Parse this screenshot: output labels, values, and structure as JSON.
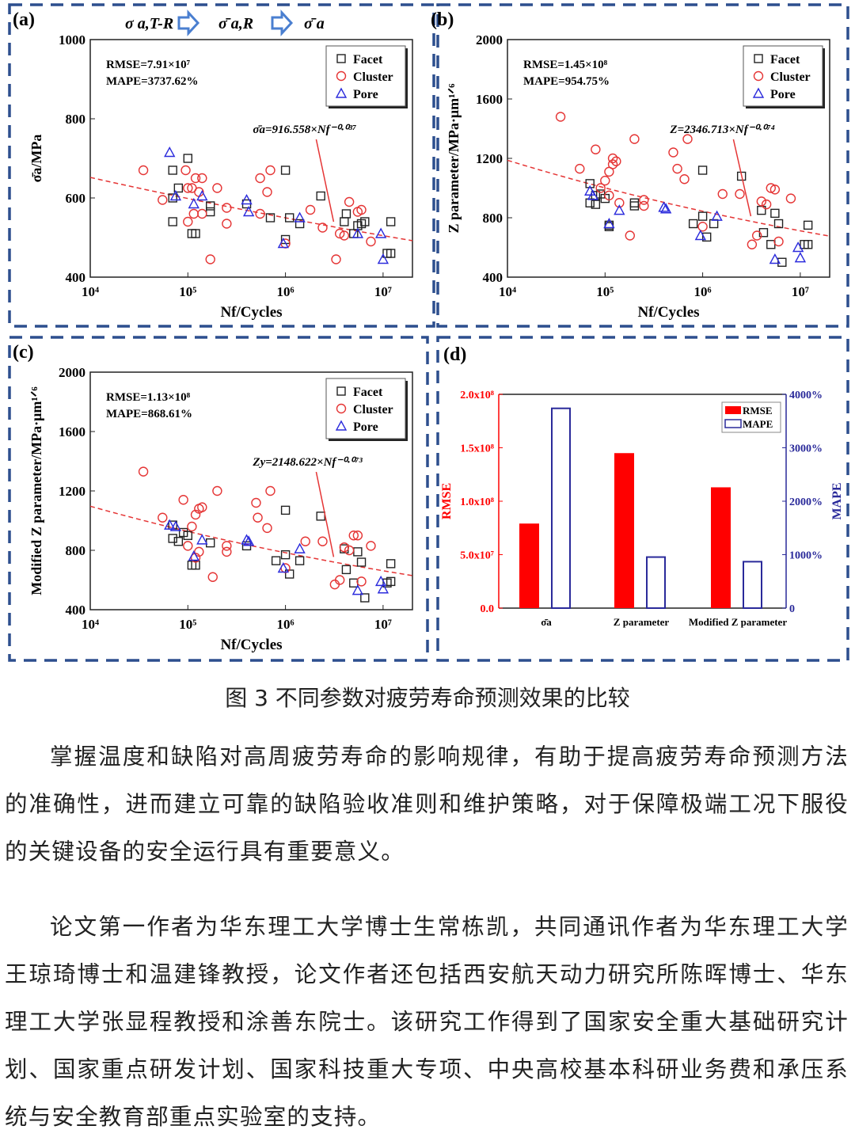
{
  "figure": {
    "panels": [
      {
        "label": "(a)",
        "title_chain": [
          "σ a,T-R",
          "σ̄ a,R",
          "σ̄ a"
        ],
        "stats": [
          "RMSE=7.91×10⁷",
          "MAPE=3737.62%"
        ],
        "fit_label": "σ̄a=916.558×Nf⁻⁰·⁰³⁷",
        "xlabel": "Nf/Cycles",
        "ylabel": "σ̄a/MPa"
      },
      {
        "label": "(b)",
        "stats": [
          "RMSE=1.45×10⁸",
          "MAPE=954.75%"
        ],
        "fit_label": "Z=2346.713×Nf⁻⁰·⁰⁷⁴",
        "xlabel": "Nf/Cycles",
        "ylabel": "Z parameter/MPa·μm¹ᐟ⁶"
      },
      {
        "label": "(c)",
        "stats": [
          "RMSE=1.13×10⁸",
          "MAPE=868.61%"
        ],
        "fit_label": "Zy=2148.622×Nf⁻⁰·⁰⁷³",
        "xlabel": "Nf/Cycles",
        "ylabel": "Modified Z parameter/MPa·μm¹ᐟ⁶"
      },
      {
        "label": "(d)"
      }
    ],
    "legend": [
      "Facet",
      "Cluster",
      "Pore"
    ]
  },
  "colors": {
    "frame": "#2d4f8e",
    "facet": "#222222",
    "cluster": "#e53535",
    "pore": "#2b2bdc",
    "rmse": "#ff0000",
    "mape": "#2a2a9a",
    "arrow": "#4a7fd0"
  },
  "chart_data": [
    {
      "type": "scatter",
      "panel": "a",
      "xscale": "log",
      "xlim": [
        10000,
        20000000
      ],
      "ylim": [
        400,
        1000
      ],
      "xticks": [
        "10⁴",
        "10⁵",
        "10⁶",
        "10⁷"
      ],
      "yticks": [
        400,
        600,
        800,
        1000
      ],
      "fit": {
        "a": 916.558,
        "b": -0.037
      },
      "series": [
        {
          "name": "Facet",
          "points": [
            [
              70000,
              670
            ],
            [
              100000,
              700
            ],
            [
              70000,
              540
            ],
            [
              80000,
              625
            ],
            [
              70000,
              600
            ],
            [
              110000,
              510
            ],
            [
              120000,
              510
            ],
            [
              170000,
              580
            ],
            [
              170000,
              565
            ],
            [
              400000,
              585
            ],
            [
              700000,
              550
            ],
            [
              1000000,
              670
            ],
            [
              1000000,
              495
            ],
            [
              1100000,
              550
            ],
            [
              1400000,
              535
            ],
            [
              2300000,
              605
            ],
            [
              4000000,
              540
            ],
            [
              4200000,
              560
            ],
            [
              5000000,
              510
            ],
            [
              5500000,
              530
            ],
            [
              6000000,
              535
            ],
            [
              6500000,
              540
            ],
            [
              12000000,
              540
            ],
            [
              11000000,
              460
            ],
            [
              12000000,
              460
            ]
          ]
        },
        {
          "name": "Cluster",
          "points": [
            [
              35000,
              670
            ],
            [
              55000,
              595
            ],
            [
              95000,
              670
            ],
            [
              100000,
              625
            ],
            [
              100000,
              540
            ],
            [
              110000,
              625
            ],
            [
              115000,
              560
            ],
            [
              120000,
              650
            ],
            [
              130000,
              615
            ],
            [
              140000,
              560
            ],
            [
              140000,
              650
            ],
            [
              170000,
              445
            ],
            [
              200000,
              625
            ],
            [
              250000,
              575
            ],
            [
              250000,
              535
            ],
            [
              550000,
              650
            ],
            [
              550000,
              560
            ],
            [
              650000,
              615
            ],
            [
              700000,
              670
            ],
            [
              1000000,
              485
            ],
            [
              1800000,
              570
            ],
            [
              2400000,
              525
            ],
            [
              3300000,
              445
            ],
            [
              3600000,
              510
            ],
            [
              4000000,
              505
            ],
            [
              4500000,
              590
            ],
            [
              5500000,
              565
            ],
            [
              6000000,
              570
            ],
            [
              7500000,
              490
            ]
          ]
        },
        {
          "name": "Pore",
          "points": [
            [
              65000,
              715
            ],
            [
              75000,
              605
            ],
            [
              115000,
              585
            ],
            [
              140000,
              605
            ],
            [
              400000,
              595
            ],
            [
              420000,
              565
            ],
            [
              950000,
              485
            ],
            [
              1400000,
              550
            ],
            [
              5500000,
              510
            ],
            [
              9500000,
              510
            ],
            [
              10000000,
              445
            ]
          ]
        }
      ]
    },
    {
      "type": "scatter",
      "panel": "b",
      "xscale": "log",
      "xlim": [
        10000,
        20000000
      ],
      "ylim": [
        400,
        2000
      ],
      "xticks": [
        "10⁴",
        "10⁵",
        "10⁶",
        "10⁷"
      ],
      "yticks": [
        400,
        800,
        1200,
        1600,
        2000
      ],
      "fit": {
        "a": 2346.713,
        "b": -0.074
      },
      "series": [
        {
          "name": "Facet",
          "points": [
            [
              70000,
              1030
            ],
            [
              80000,
              950
            ],
            [
              70000,
              900
            ],
            [
              80000,
              890
            ],
            [
              90000,
              960
            ],
            [
              100000,
              930
            ],
            [
              110000,
              740
            ],
            [
              110000,
              750
            ],
            [
              200000,
              900
            ],
            [
              200000,
              880
            ],
            [
              800000,
              760
            ],
            [
              1000000,
              1120
            ],
            [
              1000000,
              810
            ],
            [
              1100000,
              670
            ],
            [
              1300000,
              760
            ],
            [
              2500000,
              1080
            ],
            [
              4000000,
              850
            ],
            [
              4200000,
              700
            ],
            [
              5000000,
              620
            ],
            [
              5500000,
              830
            ],
            [
              6000000,
              760
            ],
            [
              6500000,
              500
            ],
            [
              11000000,
              620
            ],
            [
              12000000,
              620
            ],
            [
              12000000,
              750
            ]
          ]
        },
        {
          "name": "Cluster",
          "points": [
            [
              35000,
              1480
            ],
            [
              55000,
              1130
            ],
            [
              80000,
              1260
            ],
            [
              90000,
              1000
            ],
            [
              100000,
              1050
            ],
            [
              110000,
              1110
            ],
            [
              120000,
              1160
            ],
            [
              120000,
              1200
            ],
            [
              130000,
              1180
            ],
            [
              110000,
              950
            ],
            [
              140000,
              900
            ],
            [
              180000,
              680
            ],
            [
              200000,
              1330
            ],
            [
              250000,
              920
            ],
            [
              250000,
              880
            ],
            [
              500000,
              1240
            ],
            [
              550000,
              1130
            ],
            [
              650000,
              1060
            ],
            [
              700000,
              1330
            ],
            [
              1000000,
              740
            ],
            [
              1600000,
              960
            ],
            [
              2400000,
              960
            ],
            [
              3200000,
              620
            ],
            [
              3600000,
              680
            ],
            [
              4000000,
              910
            ],
            [
              4500000,
              890
            ],
            [
              5000000,
              1000
            ],
            [
              5500000,
              990
            ],
            [
              6000000,
              640
            ],
            [
              8000000,
              930
            ]
          ]
        },
        {
          "name": "Pore",
          "points": [
            [
              70000,
              980
            ],
            [
              75000,
              950
            ],
            [
              110000,
              760
            ],
            [
              140000,
              850
            ],
            [
              400000,
              870
            ],
            [
              420000,
              860
            ],
            [
              950000,
              680
            ],
            [
              1400000,
              810
            ],
            [
              5500000,
              520
            ],
            [
              9500000,
              600
            ],
            [
              10000000,
              530
            ]
          ]
        }
      ]
    },
    {
      "type": "scatter",
      "panel": "c",
      "xscale": "log",
      "xlim": [
        10000,
        20000000
      ],
      "ylim": [
        400,
        2000
      ],
      "xticks": [
        "10⁴",
        "10⁵",
        "10⁶",
        "10⁷"
      ],
      "yticks": [
        400,
        800,
        1200,
        1600,
        2000
      ],
      "fit": {
        "a": 2148.622,
        "b": -0.073
      },
      "series": [
        {
          "name": "Facet",
          "points": [
            [
              70000,
              880
            ],
            [
              80000,
              860
            ],
            [
              70000,
              970
            ],
            [
              90000,
              920
            ],
            [
              100000,
              900
            ],
            [
              110000,
              700
            ],
            [
              120000,
              700
            ],
            [
              170000,
              850
            ],
            [
              400000,
              830
            ],
            [
              800000,
              730
            ],
            [
              1000000,
              1070
            ],
            [
              1000000,
              770
            ],
            [
              1100000,
              640
            ],
            [
              1400000,
              730
            ],
            [
              2300000,
              1030
            ],
            [
              4000000,
              810
            ],
            [
              4200000,
              670
            ],
            [
              5000000,
              580
            ],
            [
              5500000,
              790
            ],
            [
              6000000,
              720
            ],
            [
              6500000,
              480
            ],
            [
              11000000,
              580
            ],
            [
              12000000,
              590
            ],
            [
              12000000,
              710
            ]
          ]
        },
        {
          "name": "Cluster",
          "points": [
            [
              35000,
              1330
            ],
            [
              55000,
              1020
            ],
            [
              90000,
              1140
            ],
            [
              100000,
              830
            ],
            [
              110000,
              960
            ],
            [
              120000,
              1040
            ],
            [
              130000,
              1080
            ],
            [
              140000,
              1090
            ],
            [
              130000,
              790
            ],
            [
              120000,
              750
            ],
            [
              180000,
              620
            ],
            [
              200000,
              1200
            ],
            [
              250000,
              830
            ],
            [
              250000,
              790
            ],
            [
              500000,
              1120
            ],
            [
              520000,
              1020
            ],
            [
              650000,
              950
            ],
            [
              700000,
              1200
            ],
            [
              1000000,
              680
            ],
            [
              1600000,
              860
            ],
            [
              2400000,
              860
            ],
            [
              3200000,
              570
            ],
            [
              3600000,
              600
            ],
            [
              4000000,
              820
            ],
            [
              4500000,
              800
            ],
            [
              5000000,
              900
            ],
            [
              5500000,
              900
            ],
            [
              6000000,
              590
            ],
            [
              7500000,
              830
            ]
          ]
        },
        {
          "name": "Pore",
          "points": [
            [
              65000,
              970
            ],
            [
              75000,
              960
            ],
            [
              115000,
              760
            ],
            [
              140000,
              870
            ],
            [
              400000,
              870
            ],
            [
              420000,
              860
            ],
            [
              950000,
              680
            ],
            [
              1400000,
              810
            ],
            [
              5500000,
              530
            ],
            [
              9500000,
              590
            ],
            [
              10000000,
              540
            ]
          ]
        }
      ]
    },
    {
      "type": "bar",
      "panel": "d",
      "categories": [
        "σ̄a",
        "Z parameter",
        "Modified Z parameter"
      ],
      "series": [
        {
          "name": "RMSE",
          "axis": "left",
          "values": [
            79100000,
            145000000,
            113000000
          ]
        },
        {
          "name": "MAPE",
          "axis": "right",
          "values": [
            3737.62,
            954.75,
            868.61
          ]
        }
      ],
      "ylabel_left": "RMSE",
      "ylabel_right": "MAPE",
      "ylim_left": [
        0,
        200000000
      ],
      "ylim_right": [
        0,
        4000
      ],
      "yticks_left": [
        "0.0",
        "5.0x10⁷",
        "1.0x10⁸",
        "1.5x10⁸",
        "2.0x10⁸"
      ],
      "yticks_right": [
        "0",
        "1000%",
        "2000%",
        "3000%",
        "4000%"
      ]
    }
  ],
  "caption": "图 3  不同参数对疲劳寿命预测效果的比较",
  "paragraphs": [
    "掌握温度和缺陷对高周疲劳寿命的影响规律，有助于提高疲劳寿命预测方法的准确性，进而建立可靠的缺陷验收准则和维护策略，对于保障极端工况下服役的关键设备的安全运行具有重要意义。",
    "论文第一作者为华东理工大学博士生常栋凯，共同通讯作者为华东理工大学王琼琦博士和温建锋教授，论文作者还包括西安航天动力研究所陈晖博士、华东理工大学张显程教授和涂善东院士。该研究工作得到了国家安全重大基础研究计划、国家重点研发计划、国家科技重大专项、中央高校基本科研业务费和承压系统与安全教育部重点实验室的支持。"
  ]
}
